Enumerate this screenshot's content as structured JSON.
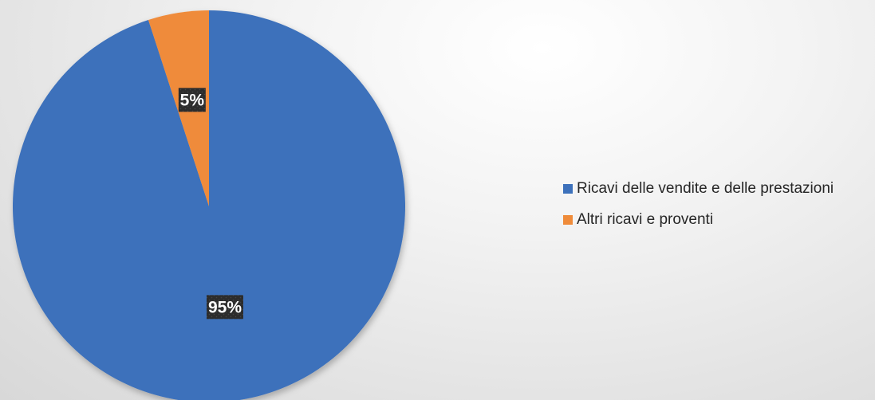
{
  "chart_data": {
    "type": "pie",
    "categories": [
      "Ricavi delle vendite e delle prestazioni",
      "Altri ricavi e proventi"
    ],
    "values": [
      95,
      5
    ],
    "labels": [
      "95%",
      "5%"
    ],
    "colors": [
      "#3d71bb",
      "#ef8b3a"
    ],
    "legend_position": "right"
  }
}
